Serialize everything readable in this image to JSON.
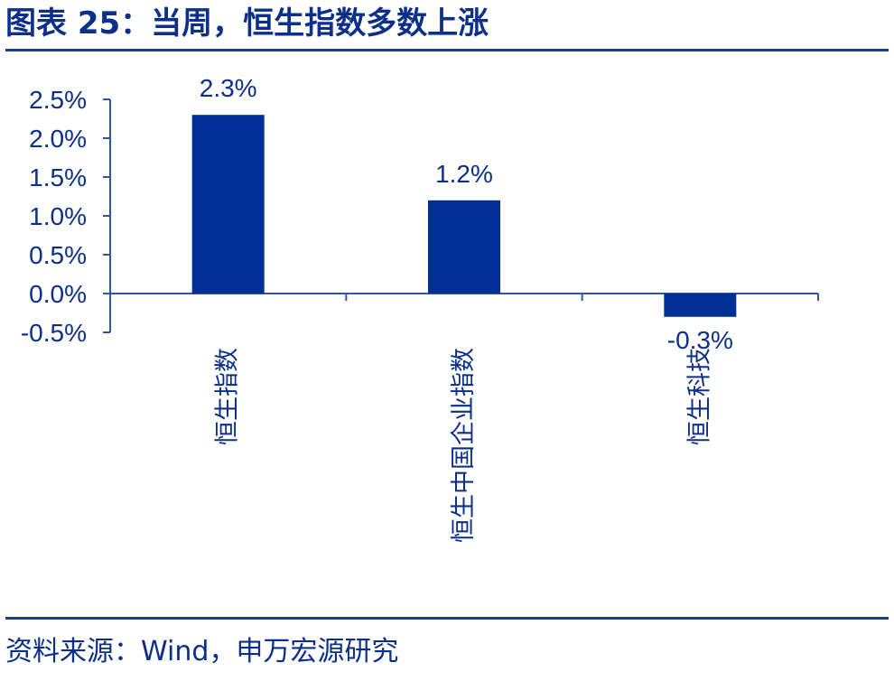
{
  "title": "图表 25：当周，恒生指数多数上涨",
  "source": "资料来源：Wind，申万宏源研究",
  "colors": {
    "bar": "#002f96",
    "axis": "#2f55a4",
    "text": "#0b2f8a"
  },
  "chart_data": {
    "type": "bar",
    "title": "",
    "xlabel": "",
    "ylabel": "",
    "categories": [
      "恒生指数",
      "恒生中国企业指数",
      "恒生科技"
    ],
    "values": [
      2.3,
      1.2,
      -0.3
    ],
    "value_labels": [
      "2.3%",
      "1.2%",
      "-0.3%"
    ],
    "yticks": [
      2.5,
      2.0,
      1.5,
      1.0,
      0.5,
      0.0,
      -0.5
    ],
    "ytick_labels": [
      "2.5%",
      "2.0%",
      "1.5%",
      "1.0%",
      "0.5%",
      "0.0%",
      "-0.5%"
    ],
    "ylim": [
      -0.5,
      2.5
    ],
    "grid": false,
    "legend": "none"
  }
}
